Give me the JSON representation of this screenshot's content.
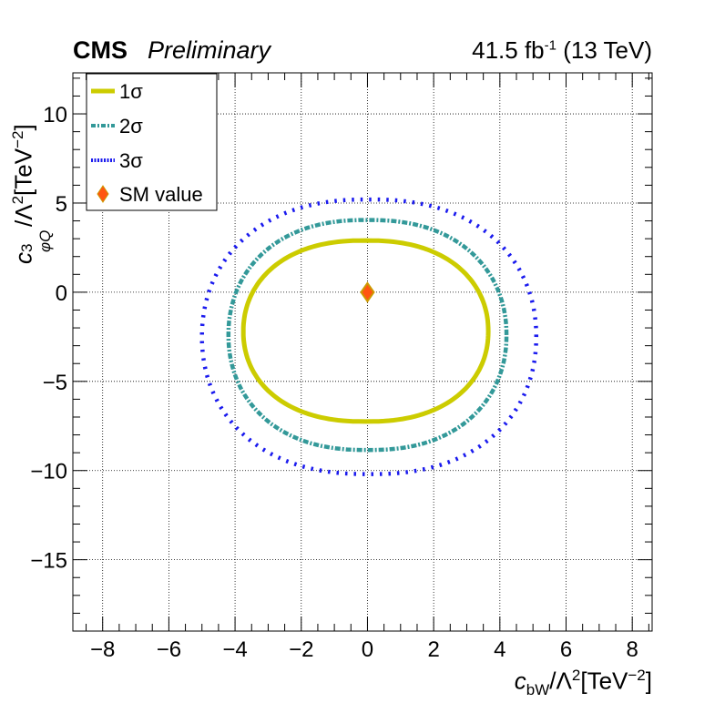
{
  "header": {
    "experiment": "CMS",
    "status": "Preliminary",
    "lumi_value": "41.5 fb",
    "lumi_exp": "-1",
    "energy": " (13 TeV)"
  },
  "axes": {
    "x_label_coef": "c",
    "x_label_sub": "bW",
    "x_label_rest": "/Λ",
    "x_label_pow": "2",
    "x_label_unit": "[TeV",
    "x_label_unit_pow": "−2",
    "x_label_close": "]",
    "y_label_coef": "c",
    "y_label_sup": "3",
    "y_label_sub": "φQ",
    "y_label_rest": "/Λ",
    "y_label_pow": "2",
    "y_label_unit": "[TeV",
    "y_label_unit_pow": "−2",
    "y_label_close": "]"
  },
  "chart_data": {
    "type": "scatter",
    "xlim": [
      -8.9,
      8.6
    ],
    "ylim": [
      -19.0,
      12.3
    ],
    "x_ticks": [
      -8,
      -6,
      -4,
      -2,
      0,
      2,
      4,
      6,
      8
    ],
    "y_ticks": [
      -15,
      -10,
      -5,
      0,
      5,
      10
    ],
    "x_tick_labels": [
      "−8",
      "−6",
      "−4",
      "−2",
      "0",
      "2",
      "4",
      "6",
      "8"
    ],
    "y_tick_labels": [
      "−15",
      "−10",
      "−5",
      "0",
      "5",
      "10"
    ],
    "grid": true,
    "legend_position": "top-left",
    "series": [
      {
        "name": "1σ",
        "style": "solid",
        "color": "#cccc00",
        "contour": {
          "center_x": -0.05,
          "center_y": -2.2,
          "semi_x": 3.7,
          "semi_y_top": 5.1,
          "semi_y_bottom": 5.05
        }
      },
      {
        "name": "2σ",
        "style": "dash-dot",
        "color": "#339999",
        "contour": {
          "center_x": 0.0,
          "center_y": -2.4,
          "semi_x": 4.2,
          "semi_y_top": 6.45,
          "semi_y_bottom": 6.45
        }
      },
      {
        "name": "3σ",
        "style": "dotted",
        "color": "#1a1aee",
        "contour": {
          "center_x": 0.05,
          "center_y": -2.5,
          "semi_x": 5.05,
          "semi_y_top": 7.7,
          "semi_y_bottom": 7.7
        }
      }
    ],
    "sm_point": {
      "name": "SM value",
      "x": 0,
      "y": 0,
      "color": "#ff5511",
      "edge": "#cc9900"
    }
  }
}
